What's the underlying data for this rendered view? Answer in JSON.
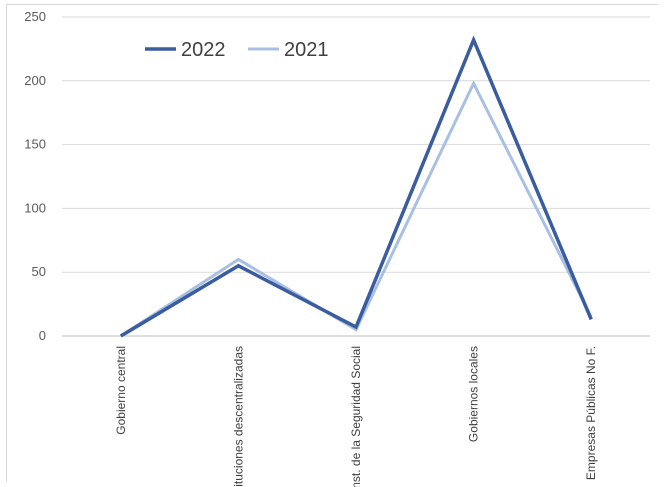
{
  "chart_data": {
    "type": "line",
    "categories": [
      "Gobierno central",
      "Instituciones descentralizadas",
      "Inst. de la Seguridad Social",
      "Gobiernos locales",
      "Empresas Públicas No F."
    ],
    "series": [
      {
        "name": "2022",
        "values": [
          0,
          55,
          7,
          232,
          13
        ],
        "color": "#3a5da0"
      },
      {
        "name": "2021",
        "values": [
          0,
          60,
          5,
          198,
          15
        ],
        "color": "#a9c0e3"
      }
    ],
    "yticks": [
      0,
      50,
      100,
      150,
      200,
      250
    ],
    "ylim": [
      0,
      250
    ],
    "grid": true,
    "legend_position": "top-left"
  }
}
